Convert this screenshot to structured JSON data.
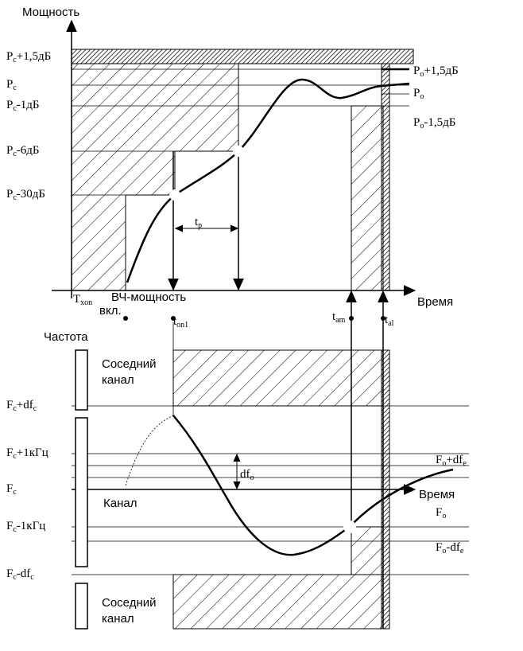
{
  "power_chart": {
    "axis_title": "Мощность",
    "time_label": "Время",
    "levels": [
      {
        "main": "P",
        "sub": "c",
        "rest": "+1,5дБ"
      },
      {
        "main": "P",
        "sub": "c",
        "rest": ""
      },
      {
        "main": "P",
        "sub": "c",
        "rest": "-1дБ"
      },
      {
        "main": "P",
        "sub": "c",
        "rest": "-6дБ"
      },
      {
        "main": "P",
        "sub": "c",
        "rest": "-30дБ"
      }
    ],
    "limits": [
      {
        "main": "P",
        "sub": "o",
        "rest": "+1,5дБ"
      },
      {
        "main": "P",
        "sub": "o",
        "rest": ""
      },
      {
        "main": "P",
        "sub": "o",
        "rest": "-1,5дБ"
      }
    ],
    "tp": {
      "main": "t",
      "sub": "p",
      "rest": ""
    },
    "times": [
      {
        "main": "T",
        "sub": "xon",
        "rest": ""
      },
      {
        "main": "t",
        "sub": "on1",
        "rest": ""
      },
      {
        "main": "t",
        "sub": "am",
        "rest": ""
      },
      {
        "main": "t",
        "sub": "al",
        "rest": ""
      }
    ],
    "rf_on": [
      "ВЧ-мощность",
      "вкл."
    ]
  },
  "frequency_chart": {
    "axis_title": "Частота",
    "time_label": "Время",
    "levels": [
      {
        "main": "F",
        "sub": "c",
        "rest": "+df",
        "sub2": "c"
      },
      {
        "main": "F",
        "sub": "c",
        "rest": "+1кГц",
        "sub2": ""
      },
      {
        "main": "F",
        "sub": "c",
        "rest": "",
        "sub2": ""
      },
      {
        "main": "F",
        "sub": "c",
        "rest": "-1кГц",
        "sub2": ""
      },
      {
        "main": "F",
        "sub": "c",
        "rest": "-df",
        "sub2": "c"
      }
    ],
    "limits": [
      {
        "main": "F",
        "sub": "o",
        "rest": "+df",
        "sub2": "e"
      },
      {
        "main": "F",
        "sub": "o",
        "rest": "",
        "sub2": ""
      },
      {
        "main": "F",
        "sub": "o",
        "rest": "-df",
        "sub2": "e"
      }
    ],
    "dfo": {
      "main": "df",
      "sub": "o",
      "rest": "",
      "sub2": ""
    },
    "adjacent_upper": [
      "Соседний",
      "канал"
    ],
    "channel": "Канал",
    "adjacent_lower": [
      "Соседний",
      "канал"
    ]
  }
}
